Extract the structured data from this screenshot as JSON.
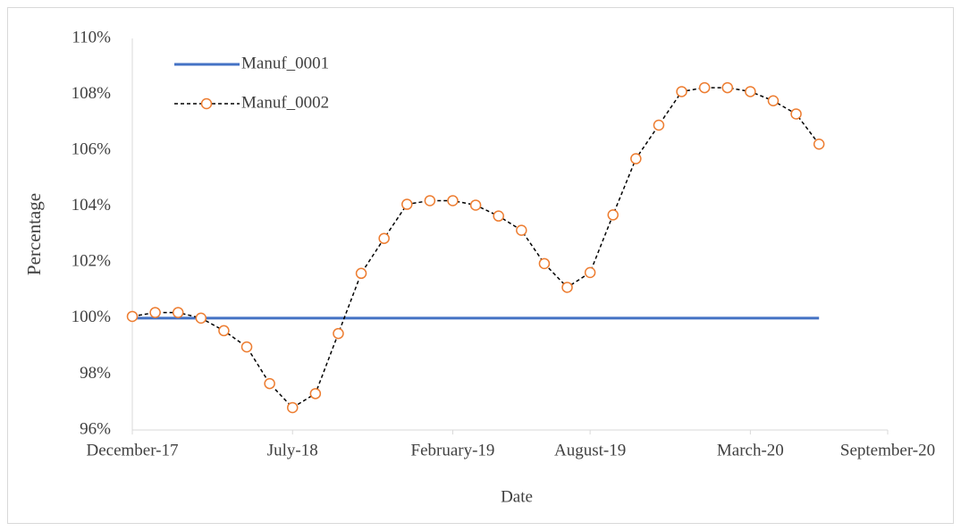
{
  "chart_data": {
    "type": "line",
    "x_label": "Date",
    "y_label": "Percentage",
    "x": [
      "2017-12",
      "2018-01",
      "2018-02",
      "2018-03",
      "2018-04",
      "2018-05",
      "2018-06",
      "2018-07",
      "2018-08",
      "2018-09",
      "2018-10",
      "2018-11",
      "2018-12",
      "2019-01",
      "2019-02",
      "2019-03",
      "2019-04",
      "2019-05",
      "2019-06",
      "2019-07",
      "2019-08",
      "2019-09",
      "2019-10",
      "2019-11",
      "2019-12",
      "2020-01",
      "2020-02",
      "2020-03",
      "2020-04",
      "2020-05",
      "2020-06"
    ],
    "series": [
      {
        "name": "Manuf_0001",
        "color": "#4472c4",
        "style": "solid",
        "values": [
          100,
          100,
          100,
          100,
          100,
          100,
          100,
          100,
          100,
          100,
          100,
          100,
          100,
          100,
          100,
          100,
          100,
          100,
          100,
          100,
          100,
          100,
          100,
          100,
          100,
          100,
          100,
          100,
          100,
          100,
          100
        ]
      },
      {
        "name": "Manuf_0002",
        "color": "#000000",
        "marker_color": "#ed7d31",
        "style": "dashed",
        "values": [
          100.06,
          100.2,
          100.2,
          100.0,
          99.55,
          98.97,
          97.66,
          96.8,
          97.3,
          99.45,
          101.6,
          102.85,
          104.07,
          104.2,
          104.2,
          104.04,
          103.65,
          103.14,
          101.95,
          101.1,
          101.63,
          103.69,
          105.7,
          106.9,
          108.1,
          108.24,
          108.24,
          108.1,
          107.77,
          107.3,
          106.22
        ]
      }
    ],
    "xlim": [
      "2017-12",
      "2020-09"
    ],
    "xticks": [
      {
        "value": "2017-12",
        "label": "December-17"
      },
      {
        "value": "2018-07",
        "label": "July-18"
      },
      {
        "value": "2019-02",
        "label": "February-19"
      },
      {
        "value": "2019-08",
        "label": "August-19"
      },
      {
        "value": "2020-03",
        "label": "March-20"
      },
      {
        "value": "2020-09",
        "label": "September-20"
      }
    ],
    "ylim": [
      96,
      110
    ],
    "yticks": [
      {
        "value": 96,
        "label": "96%"
      },
      {
        "value": 98,
        "label": "98%"
      },
      {
        "value": 100,
        "label": "100%"
      },
      {
        "value": 102,
        "label": "102%"
      },
      {
        "value": 104,
        "label": "104%"
      },
      {
        "value": 106,
        "label": "106%"
      },
      {
        "value": 108,
        "label": "108%"
      },
      {
        "value": 110,
        "label": "110%"
      }
    ],
    "legend": "top-left"
  }
}
